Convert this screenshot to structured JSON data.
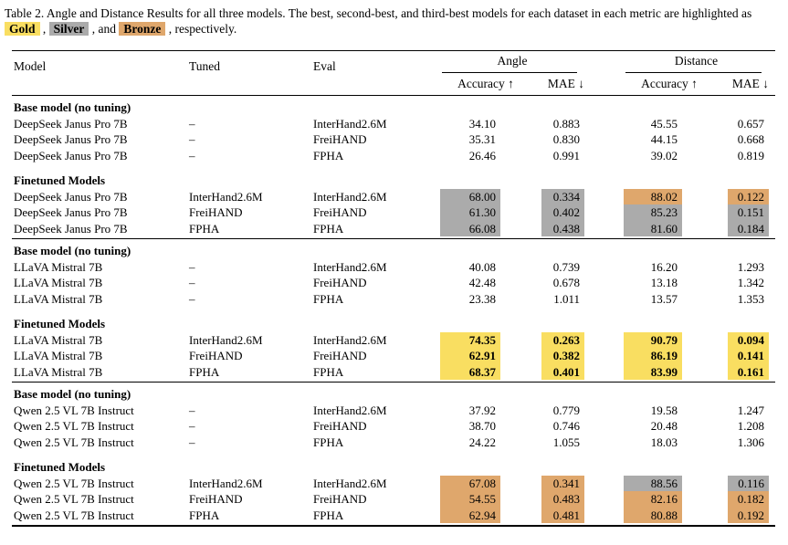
{
  "colors": {
    "gold": "#f9de61",
    "silver": "#ababab",
    "bronze": "#dfa76c"
  },
  "caption": {
    "text_before": "Table 2. Angle and Distance Results for all three models. The best, second-best, and third-best models for each dataset in each metric are highlighted as",
    "gold_label": "Gold",
    "sep1": " , ",
    "silver_label": "Silver",
    "sep2": " , and ",
    "bronze_label": "Bronze",
    "text_after": " , respectively."
  },
  "header": {
    "model": "Model",
    "tuned": "Tuned",
    "eval": "Eval",
    "angle_group": "Angle",
    "distance_group": "Distance",
    "accuracy": "Accuracy ↑",
    "mae": "MAE ↓"
  },
  "groups": [
    {
      "sections": [
        {
          "title": "Base model (no tuning)",
          "rows": [
            {
              "model": "DeepSeek Janus Pro 7B",
              "tuned": "–",
              "eval": "InterHand2.6M",
              "angle_acc": "34.10",
              "angle_mae": "0.883",
              "dist_acc": "45.55",
              "dist_mae": "0.657",
              "hl": [
                "",
                "",
                "",
                ""
              ]
            },
            {
              "model": "DeepSeek Janus Pro 7B",
              "tuned": "–",
              "eval": "FreiHAND",
              "angle_acc": "35.31",
              "angle_mae": "0.830",
              "dist_acc": "44.15",
              "dist_mae": "0.668",
              "hl": [
                "",
                "",
                "",
                ""
              ]
            },
            {
              "model": "DeepSeek Janus Pro 7B",
              "tuned": "–",
              "eval": "FPHA",
              "angle_acc": "26.46",
              "angle_mae": "0.991",
              "dist_acc": "39.02",
              "dist_mae": "0.819",
              "hl": [
                "",
                "",
                "",
                ""
              ]
            }
          ]
        },
        {
          "title": "Finetuned Models",
          "rows": [
            {
              "model": "DeepSeek Janus Pro 7B",
              "tuned": "InterHand2.6M",
              "eval": "InterHand2.6M",
              "angle_acc": "68.00",
              "angle_mae": "0.334",
              "dist_acc": "88.02",
              "dist_mae": "0.122",
              "hl": [
                "silver",
                "silver",
                "bronze",
                "bronze"
              ]
            },
            {
              "model": "DeepSeek Janus Pro 7B",
              "tuned": "FreiHAND",
              "eval": "FreiHAND",
              "angle_acc": "61.30",
              "angle_mae": "0.402",
              "dist_acc": "85.23",
              "dist_mae": "0.151",
              "hl": [
                "silver",
                "silver",
                "silver",
                "silver"
              ]
            },
            {
              "model": "DeepSeek Janus Pro 7B",
              "tuned": "FPHA",
              "eval": "FPHA",
              "angle_acc": "66.08",
              "angle_mae": "0.438",
              "dist_acc": "81.60",
              "dist_mae": "0.184",
              "hl": [
                "silver",
                "silver",
                "silver",
                "silver"
              ]
            }
          ]
        }
      ]
    },
    {
      "sections": [
        {
          "title": "Base model (no tuning)",
          "rows": [
            {
              "model": "LLaVA Mistral 7B",
              "tuned": "–",
              "eval": "InterHand2.6M",
              "angle_acc": "40.08",
              "angle_mae": "0.739",
              "dist_acc": "16.20",
              "dist_mae": "1.293",
              "hl": [
                "",
                "",
                "",
                ""
              ]
            },
            {
              "model": "LLaVA Mistral 7B",
              "tuned": "–",
              "eval": "FreiHAND",
              "angle_acc": "42.48",
              "angle_mae": "0.678",
              "dist_acc": "13.18",
              "dist_mae": "1.342",
              "hl": [
                "",
                "",
                "",
                ""
              ]
            },
            {
              "model": "LLaVA Mistral 7B",
              "tuned": "–",
              "eval": "FPHA",
              "angle_acc": "23.38",
              "angle_mae": "1.011",
              "dist_acc": "13.57",
              "dist_mae": "1.353",
              "hl": [
                "",
                "",
                "",
                ""
              ]
            }
          ]
        },
        {
          "title": "Finetuned Models",
          "rows": [
            {
              "model": "LLaVA Mistral 7B",
              "tuned": "InterHand2.6M",
              "eval": "InterHand2.6M",
              "angle_acc": "74.35",
              "angle_mae": "0.263",
              "dist_acc": "90.79",
              "dist_mae": "0.094",
              "hl": [
                "gold",
                "gold",
                "gold",
                "gold"
              ]
            },
            {
              "model": "LLaVA Mistral 7B",
              "tuned": "FreiHAND",
              "eval": "FreiHAND",
              "angle_acc": "62.91",
              "angle_mae": "0.382",
              "dist_acc": "86.19",
              "dist_mae": "0.141",
              "hl": [
                "gold",
                "gold",
                "gold",
                "gold"
              ]
            },
            {
              "model": "LLaVA Mistral 7B",
              "tuned": "FPHA",
              "eval": "FPHA",
              "angle_acc": "68.37",
              "angle_mae": "0.401",
              "dist_acc": "83.99",
              "dist_mae": "0.161",
              "hl": [
                "gold",
                "gold",
                "gold",
                "gold"
              ]
            }
          ]
        }
      ]
    },
    {
      "sections": [
        {
          "title": "Base model (no tuning)",
          "rows": [
            {
              "model": "Qwen 2.5 VL 7B Instruct",
              "tuned": "–",
              "eval": "InterHand2.6M",
              "angle_acc": "37.92",
              "angle_mae": "0.779",
              "dist_acc": "19.58",
              "dist_mae": "1.247",
              "hl": [
                "",
                "",
                "",
                ""
              ]
            },
            {
              "model": "Qwen 2.5 VL 7B Instruct",
              "tuned": "–",
              "eval": "FreiHAND",
              "angle_acc": "38.70",
              "angle_mae": "0.746",
              "dist_acc": "20.48",
              "dist_mae": "1.208",
              "hl": [
                "",
                "",
                "",
                ""
              ]
            },
            {
              "model": "Qwen 2.5 VL 7B Instruct",
              "tuned": "–",
              "eval": "FPHA",
              "angle_acc": "24.22",
              "angle_mae": "1.055",
              "dist_acc": "18.03",
              "dist_mae": "1.306",
              "hl": [
                "",
                "",
                "",
                ""
              ]
            }
          ]
        },
        {
          "title": "Finetuned Models",
          "rows": [
            {
              "model": "Qwen 2.5 VL 7B Instruct",
              "tuned": "InterHand2.6M",
              "eval": "InterHand2.6M",
              "angle_acc": "67.08",
              "angle_mae": "0.341",
              "dist_acc": "88.56",
              "dist_mae": "0.116",
              "hl": [
                "bronze",
                "bronze",
                "silver",
                "silver"
              ]
            },
            {
              "model": "Qwen 2.5 VL 7B Instruct",
              "tuned": "FreiHAND",
              "eval": "FreiHAND",
              "angle_acc": "54.55",
              "angle_mae": "0.483",
              "dist_acc": "82.16",
              "dist_mae": "0.182",
              "hl": [
                "bronze",
                "bronze",
                "bronze",
                "bronze"
              ]
            },
            {
              "model": "Qwen 2.5 VL 7B Instruct",
              "tuned": "FPHA",
              "eval": "FPHA",
              "angle_acc": "62.94",
              "angle_mae": "0.481",
              "dist_acc": "80.88",
              "dist_mae": "0.192",
              "hl": [
                "bronze",
                "bronze",
                "bronze",
                "bronze"
              ]
            }
          ]
        }
      ]
    }
  ]
}
